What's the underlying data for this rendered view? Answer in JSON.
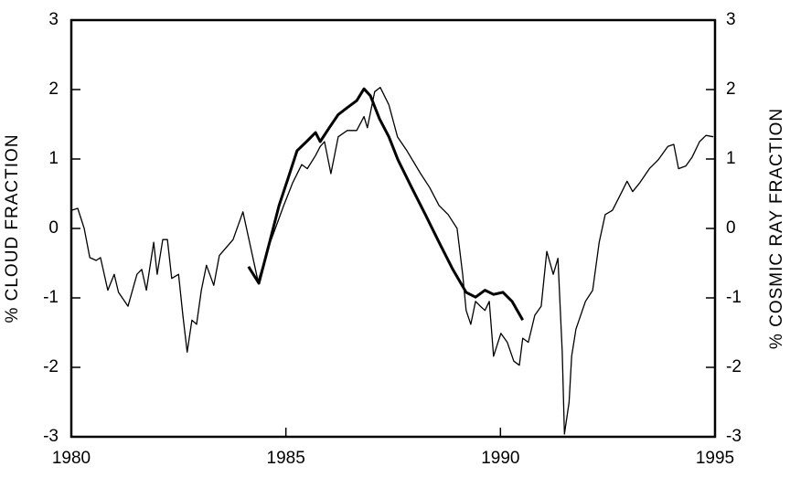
{
  "chart_data": {
    "type": "line",
    "ylabel": "% CLOUD FRACTION",
    "y2label": "% COSMIC RAY FRACTION",
    "xlim": [
      1980,
      1995
    ],
    "xticks": [
      1980,
      1985,
      1990,
      1995
    ],
    "ylim": [
      -3,
      3
    ],
    "yticks": [
      -3,
      -2,
      -1,
      0,
      1,
      2,
      3
    ],
    "y2lim": [
      -3,
      3
    ],
    "y2ticks": [
      -3,
      -2,
      -1,
      0,
      1,
      2,
      3
    ],
    "series": [
      {
        "color": "#000000",
        "axis": "y2",
        "x": [
          1980.0,
          1980.15,
          1980.3,
          1980.43,
          1980.58,
          1980.68,
          1980.85,
          1981.0,
          1981.1,
          1981.32,
          1981.53,
          1981.64,
          1981.75,
          1981.92,
          1982.0,
          1982.13,
          1982.24,
          1982.34,
          1982.5,
          1982.6,
          1982.7,
          1982.81,
          1982.92,
          1983.03,
          1983.15,
          1983.32,
          1983.45,
          1983.77,
          1984.0,
          1984.35,
          1984.6,
          1984.95,
          1985.16,
          1985.37,
          1985.5,
          1985.69,
          1985.8,
          1985.9,
          1986.05,
          1986.22,
          1986.43,
          1986.65,
          1986.82,
          1986.9,
          1987.07,
          1987.2,
          1987.4,
          1987.6,
          1987.82,
          1988.14,
          1988.35,
          1988.57,
          1988.78,
          1988.99,
          1989.12,
          1989.2,
          1989.31,
          1989.42,
          1989.53,
          1989.64,
          1989.74,
          1989.84,
          1990.01,
          1990.16,
          1990.31,
          1990.44,
          1990.52,
          1990.65,
          1990.8,
          1990.95,
          1991.08,
          1991.23,
          1991.34,
          1991.44,
          1991.49,
          1991.6,
          1991.66,
          1991.76,
          1991.98,
          1992.15,
          1992.3,
          1992.44,
          1992.61,
          1992.83,
          1992.95,
          1993.08,
          1993.25,
          1993.47,
          1993.68,
          1993.9,
          1994.04,
          1994.15,
          1994.32,
          1994.47,
          1994.64,
          1994.79,
          1994.96
        ],
        "values": [
          0.26,
          0.29,
          0,
          -0.42,
          -0.46,
          -0.42,
          -0.89,
          -0.66,
          -0.92,
          -1.12,
          -0.66,
          -0.59,
          -0.89,
          -0.2,
          -0.66,
          -0.16,
          -0.16,
          -0.72,
          -0.66,
          -1.25,
          -1.78,
          -1.32,
          -1.38,
          -0.89,
          -0.53,
          -0.82,
          -0.39,
          -0.16,
          0.24,
          -0.76,
          -0.26,
          0.33,
          0.66,
          0.92,
          0.86,
          1.05,
          1.18,
          1.25,
          0.79,
          1.32,
          1.41,
          1.41,
          1.61,
          1.45,
          1.97,
          2.03,
          1.78,
          1.32,
          1.12,
          0.79,
          0.59,
          0.33,
          0.2,
          0,
          -0.66,
          -1.18,
          -1.38,
          -1.05,
          -1.12,
          -1.18,
          -1.05,
          -1.84,
          -1.51,
          -1.64,
          -1.91,
          -1.97,
          -1.58,
          -1.64,
          -1.25,
          -1.12,
          -0.33,
          -0.66,
          -0.43,
          -1.78,
          -2.96,
          -2.5,
          -1.84,
          -1.45,
          -1.05,
          -0.89,
          -0.2,
          0.2,
          0.26,
          0.53,
          0.68,
          0.53,
          0.66,
          0.86,
          0.99,
          1.18,
          1.21,
          0.86,
          0.9,
          1.03,
          1.25,
          1.34,
          1.32
        ]
      },
      {
        "color": "#000000",
        "x": [
          1984.13,
          1984.37,
          1984.62,
          1984.84,
          1985.05,
          1985.26,
          1985.48,
          1985.69,
          1985.8,
          1986.01,
          1986.22,
          1986.43,
          1986.65,
          1986.82,
          1986.97,
          1987.18,
          1987.4,
          1987.61,
          1987.93,
          1988.25,
          1988.57,
          1988.89,
          1989.2,
          1989.42,
          1989.64,
          1989.84,
          1990.06,
          1990.27,
          1990.52
        ],
        "values": [
          -0.55,
          -0.79,
          -0.2,
          0.33,
          0.72,
          1.12,
          1.25,
          1.38,
          1.25,
          1.45,
          1.64,
          1.74,
          1.84,
          2.01,
          1.91,
          1.58,
          1.32,
          0.99,
          0.59,
          0.2,
          -0.2,
          -0.59,
          -0.92,
          -0.99,
          -0.89,
          -0.95,
          -0.92,
          -1.05,
          -1.32
        ]
      }
    ]
  }
}
